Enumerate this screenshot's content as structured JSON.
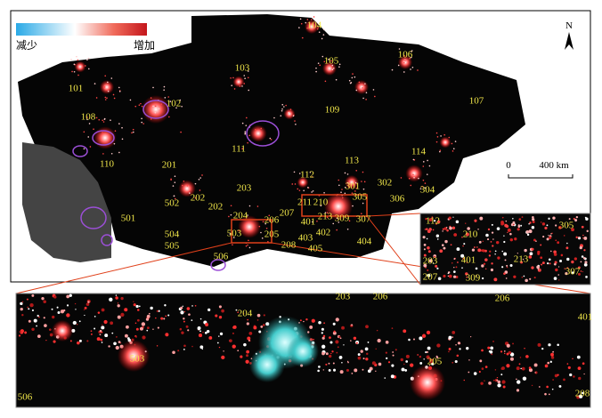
{
  "legend": {
    "low": "减少",
    "high": "增加"
  },
  "north": "N",
  "scale": {
    "zero": "0",
    "distance": "400 km"
  },
  "labels": [
    "104",
    "103",
    "105",
    "106",
    "101",
    "102",
    "108",
    "109",
    "107",
    "111",
    "110",
    "201",
    "113",
    "114",
    "112",
    "301",
    "302",
    "304",
    "502",
    "203",
    "202",
    "202",
    "501",
    "204",
    "207",
    "211",
    "210",
    "305",
    "306",
    "401",
    "213",
    "309",
    "307",
    "206",
    "205",
    "402",
    "403",
    "208",
    "405",
    "404",
    "504",
    "505",
    "503",
    "506"
  ],
  "inset_right_labels": [
    "112",
    "210",
    "305",
    "401",
    "213",
    "203",
    "207",
    "309",
    "307"
  ],
  "inset_bottom_labels": [
    "204",
    "203",
    "206",
    "206",
    "401",
    "503",
    "205",
    "506",
    "208"
  ]
}
